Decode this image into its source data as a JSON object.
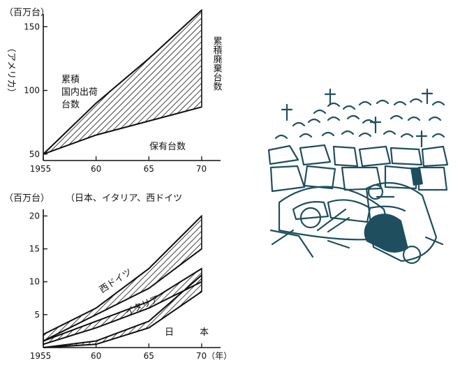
{
  "chart_data": [
    {
      "type": "area",
      "unit_label": "（百万台）",
      "ylabel": "（アメリカ）",
      "x": [
        1955,
        1960,
        1965,
        1970
      ],
      "yticks": [
        50,
        100,
        150
      ],
      "xtick_labels": [
        "1955",
        "60",
        "65",
        "70"
      ],
      "xlim": [
        1955,
        1971
      ],
      "ylim": [
        45,
        160
      ],
      "series": [
        {
          "name": "累積国内出荷台数",
          "values": [
            50,
            90,
            125,
            163
          ]
        },
        {
          "name": "保有台数",
          "values": [
            50,
            65,
            76,
            87
          ]
        }
      ],
      "annotations": {
        "shipments_line1": "累積",
        "shipments_line2": "国内出荷",
        "shipments_line3": "台数",
        "scrapped": "累積廃棄台数",
        "owned": "保有台数"
      }
    },
    {
      "type": "area",
      "unit_label": "（百万台）",
      "countries_label": "（日本、イタリア、西ドイツ",
      "x": [
        1955,
        1960,
        1965,
        1970
      ],
      "yticks": [
        5,
        10,
        15,
        20
      ],
      "xtick_labels": [
        "1955",
        "60",
        "65",
        "70（年）"
      ],
      "xlim": [
        1955,
        1971
      ],
      "ylim": [
        0,
        21
      ],
      "series": [
        {
          "name": "西ドイツ",
          "upper": [
            2,
            6,
            12,
            20
          ],
          "lower": [
            1,
            5,
            9,
            15
          ]
        },
        {
          "name": "イタリア",
          "upper": [
            1,
            4,
            7,
            12
          ],
          "lower": [
            0.5,
            3,
            6,
            10
          ]
        },
        {
          "name": "日本",
          "upper": [
            0,
            1,
            4,
            11
          ],
          "lower": [
            0,
            0.5,
            3,
            8.5
          ]
        }
      ],
      "annotations": {
        "germany": "西ドイツ",
        "italy": "イタリア",
        "japan_1": "日",
        "japan_2": "本"
      }
    }
  ]
}
